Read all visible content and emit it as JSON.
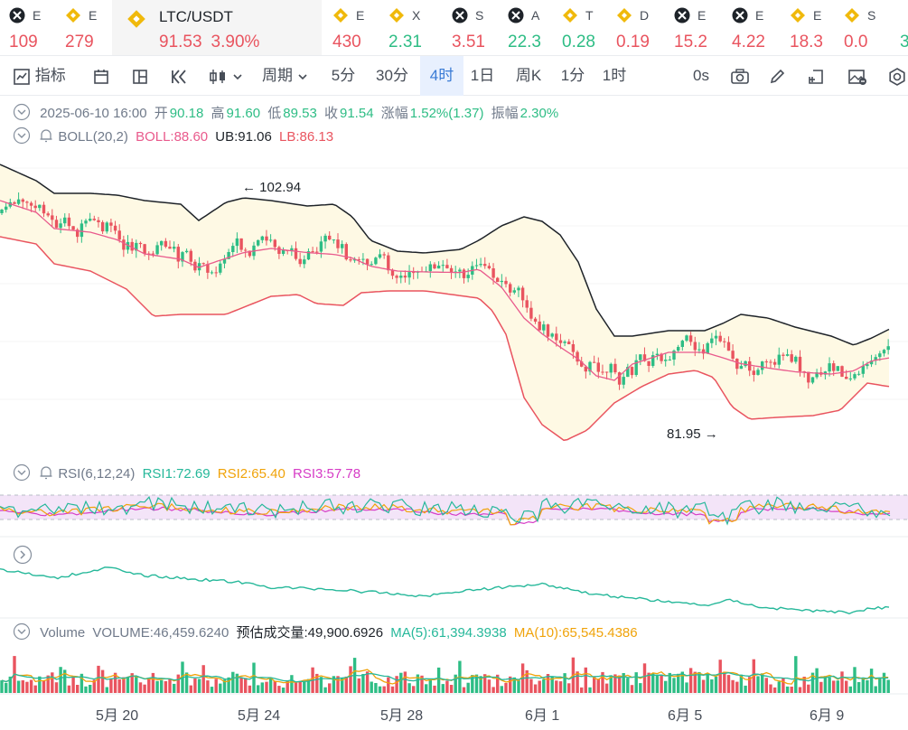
{
  "ticker": [
    {
      "name": "E",
      "price": "109",
      "dir": "dn",
      "icon": "crossed-circle-icon"
    },
    {
      "name": "E",
      "price": "279",
      "dir": "dn",
      "icon": "binance-coin-icon"
    },
    {
      "name": "LTC/USDT",
      "price": "91.53",
      "change": "3.90%",
      "dir": "dn",
      "icon": "binance-coin-icon",
      "active": true
    },
    {
      "name": "E",
      "price": "430",
      "dir": "dn",
      "icon": "binance-coin-icon"
    },
    {
      "name": "X",
      "price": "2.31",
      "dir": "up",
      "icon": "binance-coin-icon"
    },
    {
      "name": "S",
      "price": "3.51",
      "dir": "dn",
      "icon": "crossed-circle-icon"
    },
    {
      "name": "A",
      "price": "22.3",
      "dir": "up",
      "icon": "crossed-circle-icon"
    },
    {
      "name": "T",
      "price": "0.28",
      "dir": "up",
      "icon": "binance-coin-icon"
    },
    {
      "name": "D",
      "price": "0.19",
      "dir": "dn",
      "icon": "binance-coin-icon"
    },
    {
      "name": "E",
      "price": "15.2",
      "dir": "dn",
      "icon": "crossed-circle-icon"
    },
    {
      "name": "E",
      "price": "4.22",
      "dir": "dn",
      "icon": "crossed-circle-icon"
    },
    {
      "name": "E",
      "price": "18.3",
      "dir": "dn",
      "icon": "binance-coin-icon"
    },
    {
      "name": "S",
      "price": "0.0",
      "dir": "dn",
      "icon": "binance-coin-icon"
    },
    {
      "name": "",
      "price": "3",
      "dir": "up",
      "icon": ""
    }
  ],
  "toolbar": {
    "indicators_label": "指标",
    "period_label": "周期",
    "intervals": [
      "5分",
      "30分",
      "4时",
      "1日",
      "周K",
      "1分",
      "1时"
    ],
    "selected_interval": "4时",
    "countdown": "0s"
  },
  "ohlc": {
    "datetime": "2025-06-10 16:00",
    "open_label": "开",
    "open": "90.18",
    "high_label": "高",
    "high": "91.60",
    "low_label": "低",
    "low": "89.53",
    "close_label": "收",
    "close": "91.54",
    "change_label": "涨幅",
    "change": "1.52%(1.37)",
    "amp_label": "振幅",
    "amp": "2.30%"
  },
  "boll": {
    "label": "BOLL(20,2)",
    "mid": "BOLL:88.60",
    "ub": "UB:91.06",
    "lb": "LB:86.13"
  },
  "rsi": {
    "label": "RSI(6,12,24)",
    "rsi1": "RSI1:72.69",
    "rsi2": "RSI2:65.40",
    "rsi3": "RSI3:57.78"
  },
  "volume": {
    "label": "Volume",
    "volume": "VOLUME:46,459.6240",
    "estimate": "预估成交量:49,900.6926",
    "ma5": "MA(5):61,394.3938",
    "ma10": "MA(10):65,545.4386"
  },
  "annotations": {
    "high_mark": "102.94",
    "low_mark": "81.95"
  },
  "x_labels": [
    "5月 20",
    "5月 24",
    "5月 28",
    "6月 1",
    "6月 5",
    "6月 9"
  ],
  "colors": {
    "up": "#2ebd85",
    "down": "#e9545f",
    "boll_mid": "#e95a8c",
    "boll_upper": "#1e2329",
    "boll_lower": "#e9545f",
    "rsi1": "#26b89a",
    "rsi2": "#f0a30a",
    "rsi3": "#d63cc6"
  },
  "chart_data": {
    "type": "candlestick",
    "symbol": "LTC/USDT",
    "interval": "4时",
    "price_high": 102.94,
    "price_low": 81.95,
    "boll_last": {
      "mid": 88.6,
      "upper": 91.06,
      "lower": 86.13
    },
    "rsi_last": {
      "rsi1": 72.69,
      "rsi2": 65.4,
      "rsi3": 57.78
    },
    "x_ticks": [
      "5月 20",
      "5月 24",
      "5月 28",
      "6月 1",
      "6月 5",
      "6月 9"
    ]
  }
}
